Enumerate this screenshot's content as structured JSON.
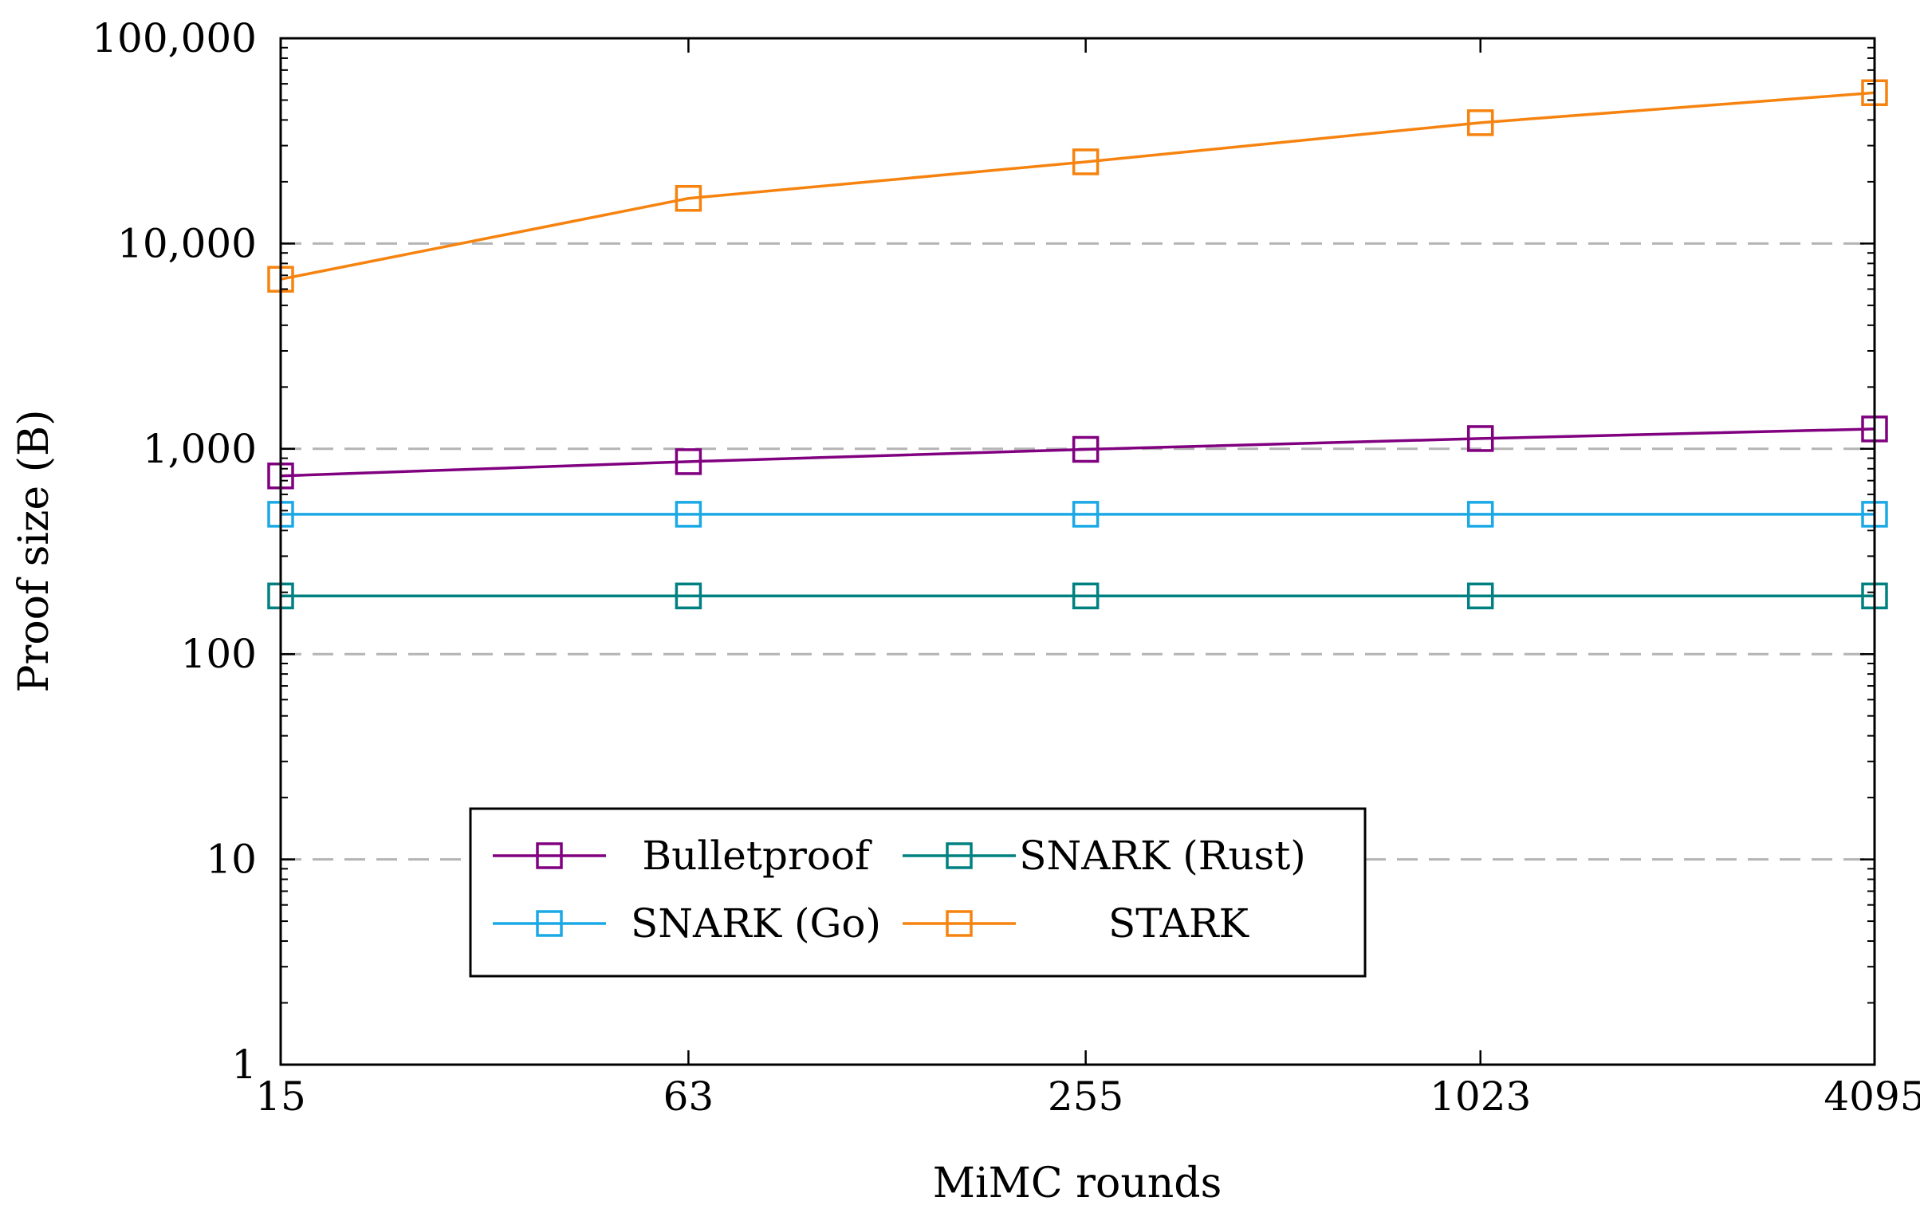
{
  "chart_data": {
    "type": "line",
    "title": "",
    "xlabel": "MiMC rounds",
    "ylabel": "Proof size (B)",
    "x_scale": "log2",
    "y_scale": "log10",
    "categories": [
      "15",
      "63",
      "255",
      "1023",
      "4095"
    ],
    "x": [
      15,
      63,
      255,
      1023,
      4095
    ],
    "ylim": [
      1,
      100000
    ],
    "y_ticks": [
      1,
      10,
      100,
      1000,
      10000,
      100000
    ],
    "y_tick_labels": [
      "1",
      "10",
      "100",
      "1,000",
      "10,000",
      "100,000"
    ],
    "grid": "horizontal-dashed",
    "legend_position": "lower-center",
    "series": [
      {
        "name": "Bulletproof",
        "color": "#800080",
        "marker": "square-open",
        "values": [
          738,
          866,
          994,
          1122,
          1250
        ]
      },
      {
        "name": "SNARK (Rust)",
        "color": "#008080",
        "marker": "square-open",
        "values": [
          192,
          192,
          192,
          192,
          192
        ]
      },
      {
        "name": "SNARK (Go)",
        "color": "#1BA9E5",
        "marker": "square-open",
        "values": [
          480,
          480,
          480,
          480,
          480
        ]
      },
      {
        "name": "STARK",
        "color": "#F6830F",
        "marker": "square-open",
        "values": [
          6700,
          16600,
          25000,
          38800,
          54300
        ]
      }
    ]
  }
}
